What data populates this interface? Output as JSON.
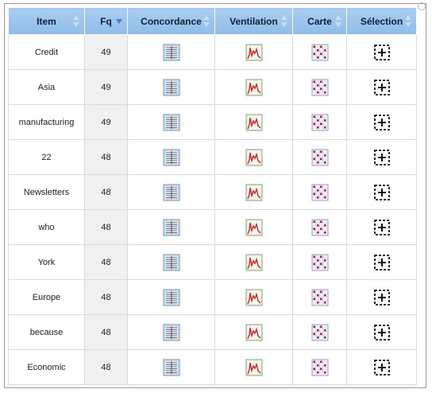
{
  "table": {
    "columns": [
      {
        "label": "Item",
        "sort": "none"
      },
      {
        "label": "Fq",
        "sort": "desc"
      },
      {
        "label": "Concordance",
        "sort": "none"
      },
      {
        "label": "Ventilation",
        "sort": "none"
      },
      {
        "label": "Carte",
        "sort": "none"
      },
      {
        "label": "Sélection",
        "sort": "none"
      }
    ],
    "rows": [
      {
        "item": "Credit",
        "fq": "49"
      },
      {
        "item": "Asia",
        "fq": "49"
      },
      {
        "item": "manufacturing",
        "fq": "49"
      },
      {
        "item": "22",
        "fq": "48"
      },
      {
        "item": "Newsletters",
        "fq": "48"
      },
      {
        "item": "who",
        "fq": "48"
      },
      {
        "item": "York",
        "fq": "48"
      },
      {
        "item": "Europe",
        "fq": "48"
      },
      {
        "item": "because",
        "fq": "48"
      },
      {
        "item": "Economic",
        "fq": "48"
      }
    ],
    "row_icons": {
      "concordance": "concordance-list-icon",
      "ventilation": "distribution-graph-icon",
      "carte": "map-grid-icon",
      "selection": "add-selection-icon"
    }
  },
  "colors": {
    "header_bg": "#9fc7ee",
    "header_text": "#0b2136",
    "sort_active": "#5d6fd8",
    "fq_cell_bg": "#f0f0f0",
    "graph_line": "#d42020",
    "map_dot": "#c8102e"
  }
}
